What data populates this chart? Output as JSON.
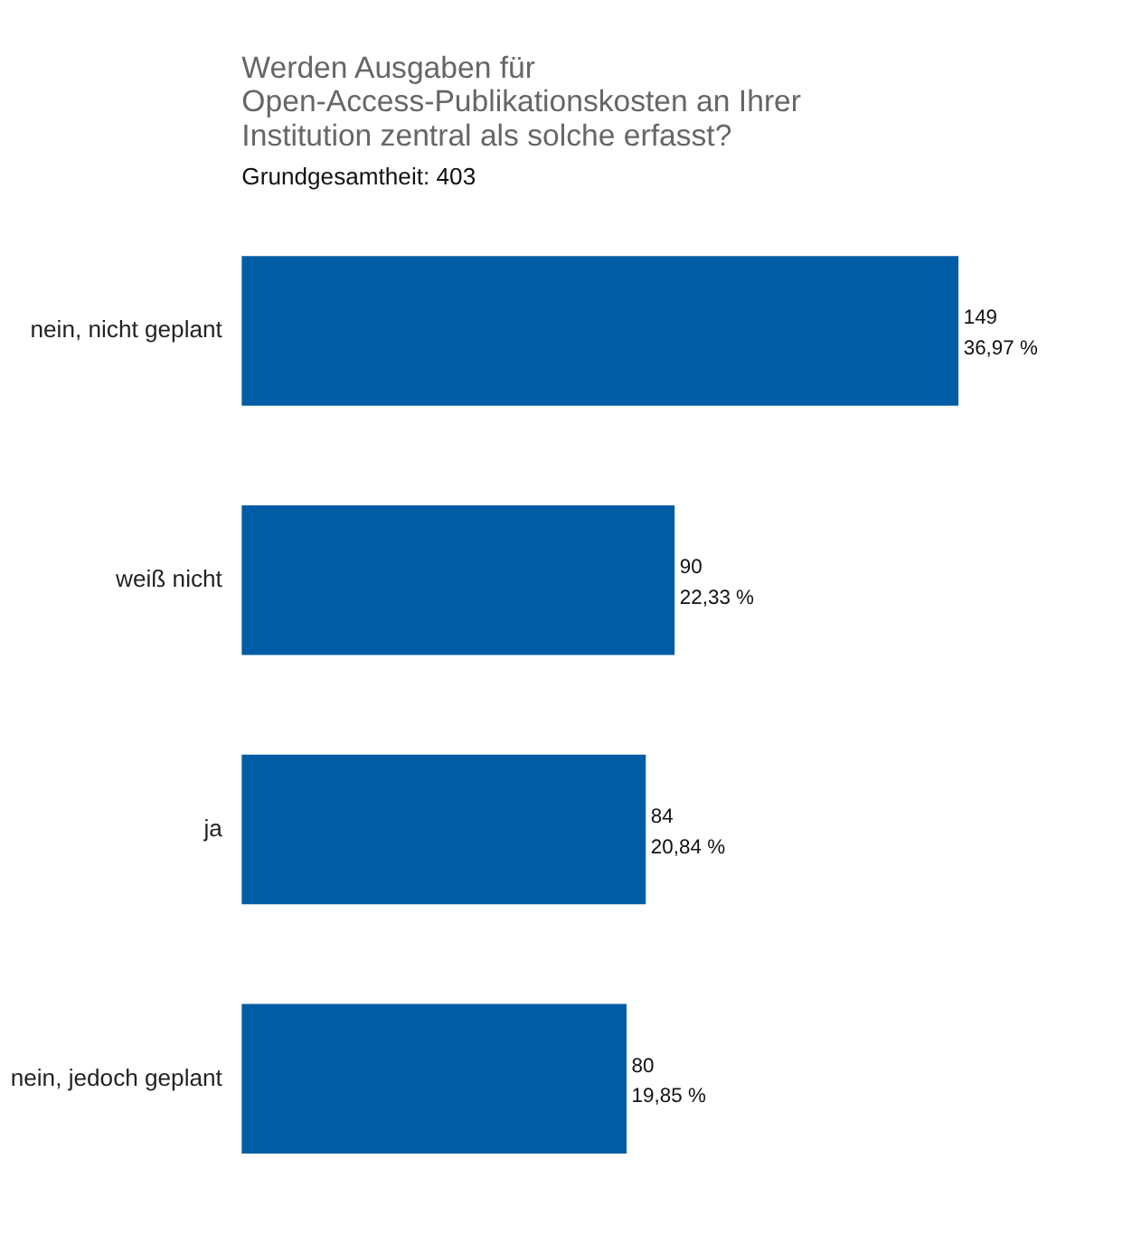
{
  "chart_data": {
    "type": "bar",
    "orientation": "horizontal",
    "title": [
      "Werden Ausgaben für",
      "Open-Access-Publikationskosten an Ihrer",
      "Institution zentral als solche erfasst?"
    ],
    "subtitle": "Grundgesamtheit: 403",
    "categories": [
      "nein, nicht geplant",
      "weiß nicht",
      "ja",
      "nein, jedoch geplant"
    ],
    "values": [
      149,
      90,
      84,
      80
    ],
    "color": "#005ca5",
    "value_labels": [
      "149\n36,97 %",
      "90\n22,33 %",
      "84\n20,84 %",
      "80\n19,85 %"
    ],
    "grid": false
  }
}
